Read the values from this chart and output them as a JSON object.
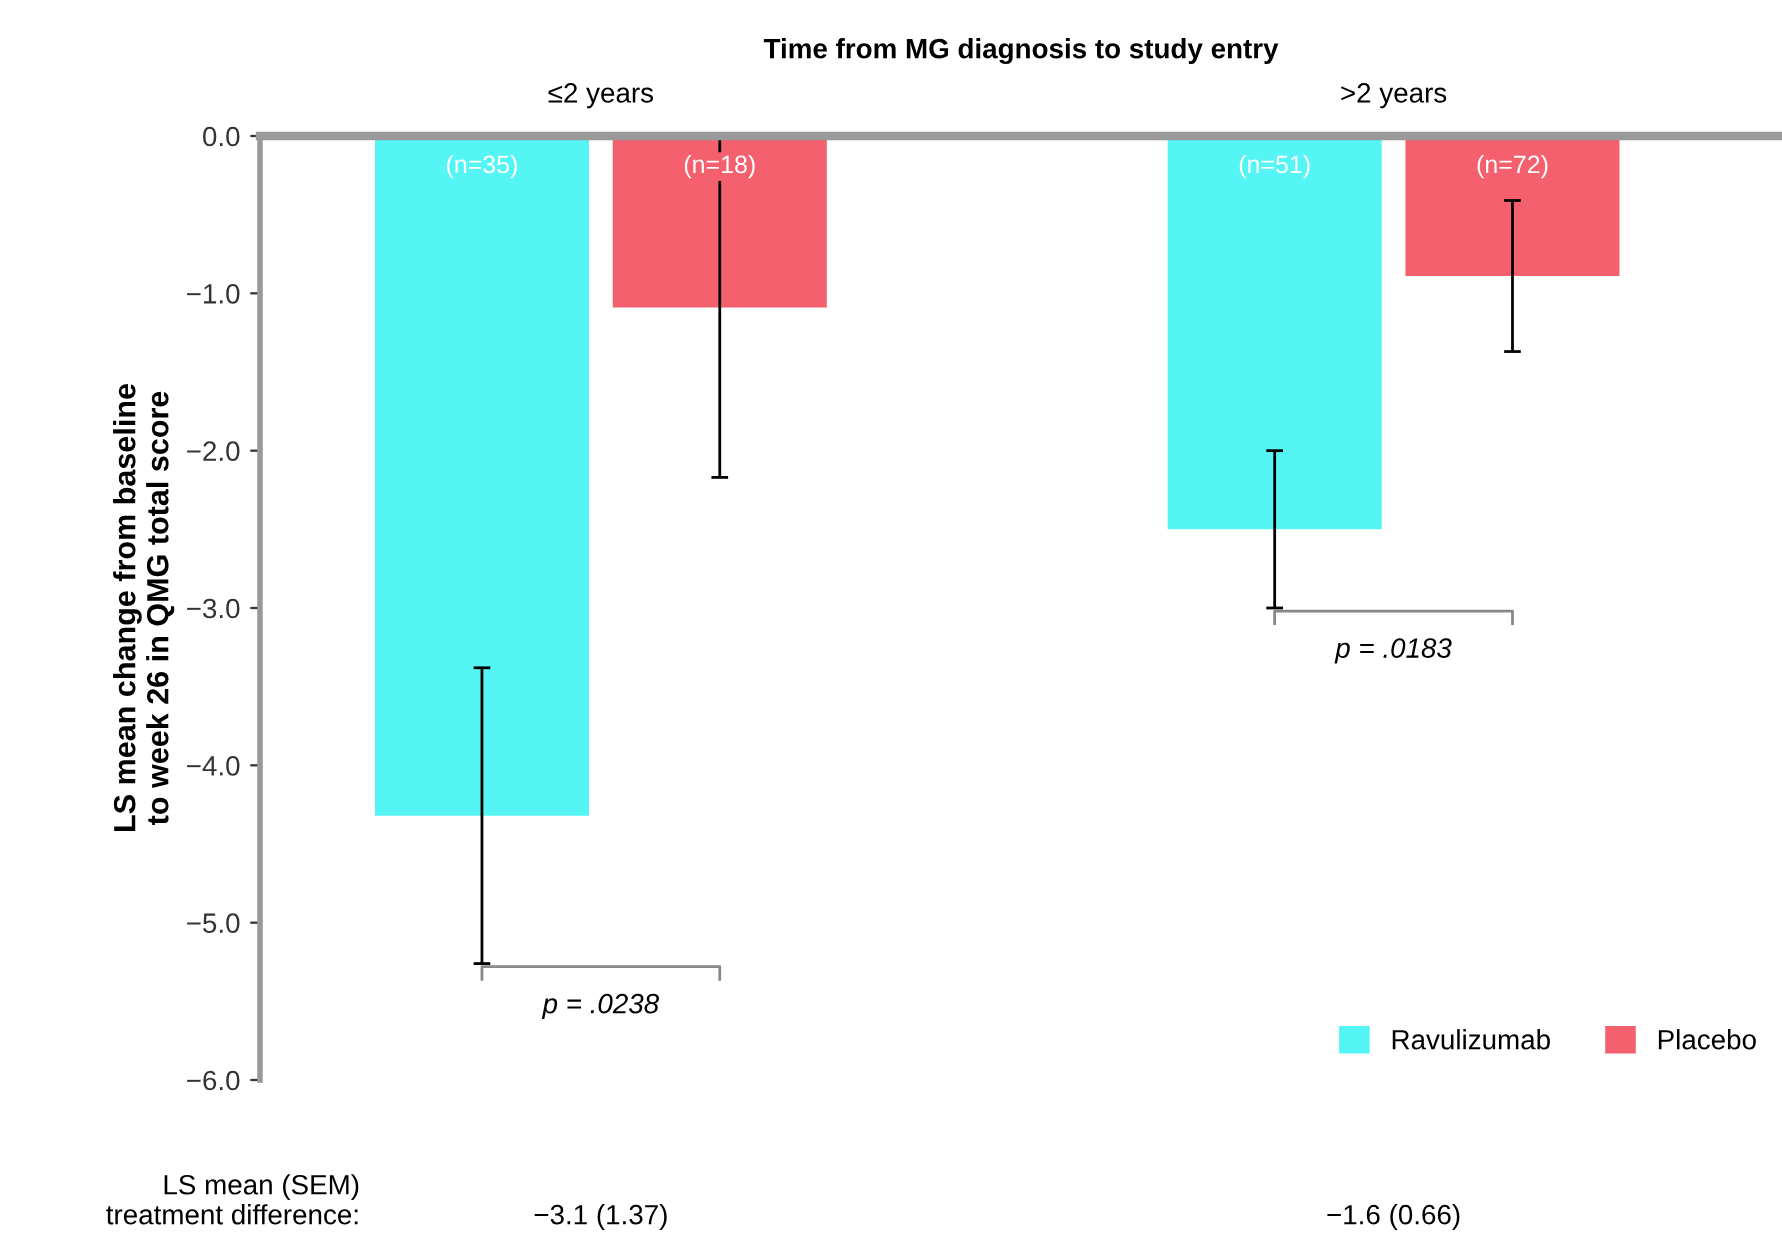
{
  "chart_data": {
    "type": "bar",
    "title": "Time from MG diagnosis to study entry",
    "ylabel": "LS mean change from baseline\nto week 26 in QMG total score",
    "categories": [
      "≤2 years",
      ">2 years"
    ],
    "series": [
      {
        "name": "Ravulizumab",
        "color": "#55f5f5",
        "values": [
          -4.32,
          -2.5
        ],
        "errors": [
          0.94,
          0.5
        ]
      },
      {
        "name": "Placebo",
        "color": "#f5606f",
        "values": [
          -1.09,
          -0.89
        ],
        "errors": [
          1.08,
          0.48
        ]
      }
    ],
    "ylim": [
      -6,
      0
    ],
    "yticks": [
      {
        "value": 0,
        "label": "0.0"
      },
      {
        "value": -1,
        "label": "−1.0"
      },
      {
        "value": -2,
        "label": "−2.0"
      },
      {
        "value": -3,
        "label": "−3.0"
      },
      {
        "value": -4,
        "label": "−4.0"
      },
      {
        "value": -5,
        "label": "−5.0"
      },
      {
        "value": -6,
        "label": "−6.0"
      }
    ],
    "grid": false,
    "legend": "bottom right",
    "annotations": [
      "(n=35)",
      "(n=18)",
      "(n=51)",
      "(n=72)",
      "p = .0238",
      "p = .0183",
      "LS mean (SEM)\ntreatment difference:",
      "−3.1 (1.37)",
      "−1.6 (0.66)"
    ]
  }
}
